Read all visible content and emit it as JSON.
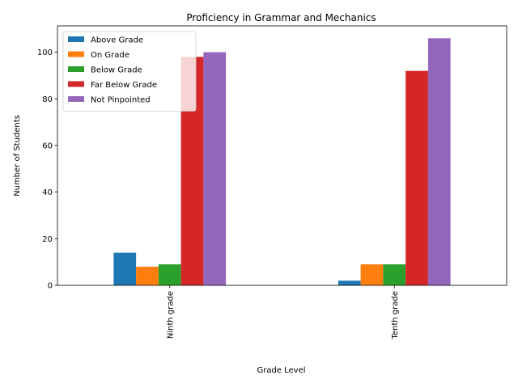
{
  "chart_data": {
    "type": "bar",
    "title": "Proficiency in Grammar and Mechanics",
    "xlabel": "Grade Level",
    "ylabel": "Number of Students",
    "categories": [
      "Ninth grade",
      "Tenth grade"
    ],
    "series": [
      {
        "name": "Above Grade",
        "color": "#1f77b4",
        "values": [
          14,
          2
        ]
      },
      {
        "name": "On Grade",
        "color": "#ff7f0e",
        "values": [
          8,
          9
        ]
      },
      {
        "name": "Below Grade",
        "color": "#2ca02c",
        "values": [
          9,
          9
        ]
      },
      {
        "name": "Far Below Grade",
        "color": "#d62728",
        "values": [
          98,
          92
        ]
      },
      {
        "name": "Not Pinpointed",
        "color": "#9467bd",
        "values": [
          100,
          106
        ]
      }
    ],
    "ylim": [
      0,
      111.3
    ],
    "yticks": [
      0,
      20,
      40,
      60,
      80,
      100
    ],
    "legend_position": "top-left",
    "grid": false
  }
}
